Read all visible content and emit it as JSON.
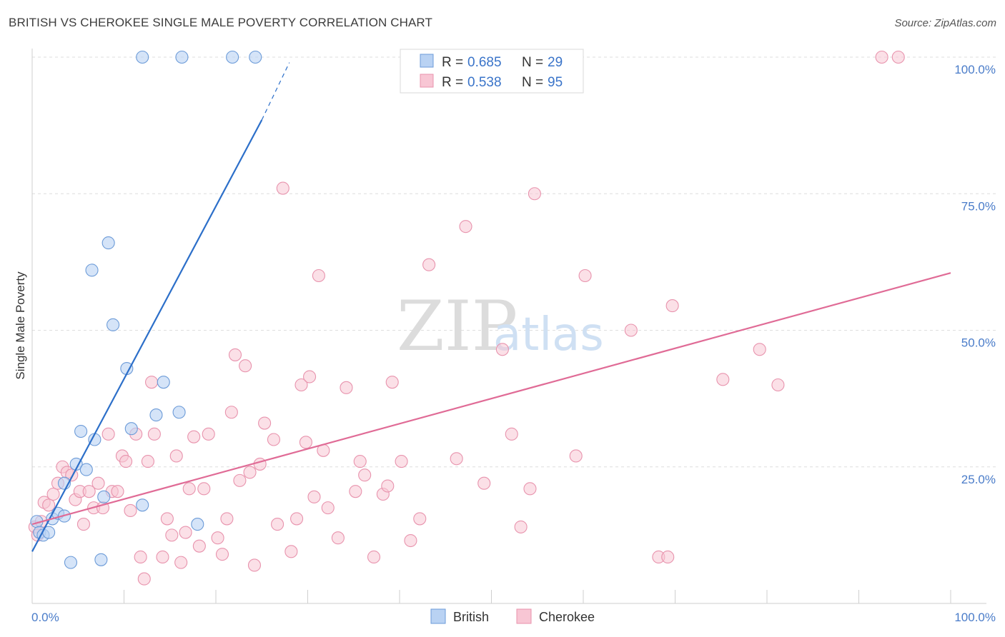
{
  "title": "BRITISH VS CHEROKEE SINGLE MALE POVERTY CORRELATION CHART",
  "source": "Source: ZipAtlas.com",
  "watermark": {
    "zip": "ZIP",
    "atlas": "atlas"
  },
  "colors": {
    "british_fill": "#b9d2f3",
    "british_stroke": "#6c9bd8",
    "british_line": "#2c6fc9",
    "cherokee_fill": "#f8c6d4",
    "cherokee_stroke": "#e893ad",
    "cherokee_line": "#e06b96",
    "grid": "#dedede",
    "axis_text": "#4a7cc9"
  },
  "legend": {
    "british": {
      "r_label": "R = ",
      "r_value": "0.685",
      "n_label": "N = ",
      "n_value": "29"
    },
    "cherokee": {
      "r_label": "R = ",
      "r_value": "0.538",
      "n_label": "N = ",
      "n_value": "95"
    }
  },
  "chart_data": {
    "type": "scatter",
    "title": "BRITISH VS CHEROKEE SINGLE MALE POVERTY CORRELATION CHART",
    "xlabel": "",
    "ylabel": "Single Male Poverty",
    "xlim": [
      0,
      100
    ],
    "ylim": [
      0,
      100
    ],
    "x_tick_labels": [
      "0.0%",
      "100.0%"
    ],
    "y_tick_labels": [
      "25.0%",
      "50.0%",
      "75.0%",
      "100.0%"
    ],
    "y_ticks": [
      25,
      50,
      75,
      100
    ],
    "grid": true,
    "legend_position": "top-center",
    "series": [
      {
        "name": "British",
        "r": 0.685,
        "n": 29,
        "trend": {
          "x0": 0,
          "y0": 9.5,
          "x1": 25,
          "y1": 88.5,
          "dash_x1": 28,
          "dash_y1": 99
        },
        "points": [
          [
            0.5,
            15
          ],
          [
            0.8,
            13
          ],
          [
            1.2,
            12.5
          ],
          [
            1.8,
            13
          ],
          [
            2.2,
            15.5
          ],
          [
            2.8,
            16.5
          ],
          [
            3.5,
            16
          ],
          [
            3.5,
            22
          ],
          [
            4.2,
            7.5
          ],
          [
            4.8,
            25.5
          ],
          [
            5.3,
            31.5
          ],
          [
            5.9,
            24.5
          ],
          [
            6.5,
            61
          ],
          [
            6.8,
            30
          ],
          [
            7.5,
            8
          ],
          [
            7.8,
            19.5
          ],
          [
            8.3,
            66
          ],
          [
            8.8,
            51
          ],
          [
            10.3,
            43
          ],
          [
            10.8,
            32
          ],
          [
            12,
            18
          ],
          [
            12,
            100
          ],
          [
            13.5,
            34.5
          ],
          [
            14.3,
            40.5
          ],
          [
            16,
            35
          ],
          [
            16.3,
            100
          ],
          [
            18,
            14.5
          ],
          [
            21.8,
            100
          ],
          [
            24.3,
            100
          ]
        ]
      },
      {
        "name": "Cherokee",
        "r": 0.538,
        "n": 95,
        "trend": {
          "x0": 0,
          "y0": 14.5,
          "x1": 100,
          "y1": 60.5
        },
        "points": [
          [
            0.3,
            14
          ],
          [
            0.6,
            12.5
          ],
          [
            1,
            15
          ],
          [
            1.3,
            18.5
          ],
          [
            1.8,
            18
          ],
          [
            2.3,
            20
          ],
          [
            2.8,
            22
          ],
          [
            3.3,
            25
          ],
          [
            3.8,
            24
          ],
          [
            4.3,
            23.5
          ],
          [
            4.7,
            19
          ],
          [
            5.2,
            20.5
          ],
          [
            5.6,
            14.5
          ],
          [
            6.2,
            20.5
          ],
          [
            6.7,
            17.5
          ],
          [
            7.2,
            22
          ],
          [
            7.7,
            17.5
          ],
          [
            8.3,
            31
          ],
          [
            8.7,
            20.5
          ],
          [
            9.3,
            20.5
          ],
          [
            9.8,
            27
          ],
          [
            10.2,
            26
          ],
          [
            10.7,
            17
          ],
          [
            11.3,
            31
          ],
          [
            11.8,
            8.5
          ],
          [
            12.2,
            4.5
          ],
          [
            12.6,
            26
          ],
          [
            13,
            40.5
          ],
          [
            13.3,
            31
          ],
          [
            14.2,
            8.5
          ],
          [
            14.7,
            15.5
          ],
          [
            15.2,
            12.5
          ],
          [
            15.7,
            27
          ],
          [
            16.2,
            7.5
          ],
          [
            16.7,
            13
          ],
          [
            17.1,
            21
          ],
          [
            17.6,
            30.5
          ],
          [
            18.2,
            10.5
          ],
          [
            18.7,
            21
          ],
          [
            19.2,
            31
          ],
          [
            20.2,
            12
          ],
          [
            20.7,
            9
          ],
          [
            21.2,
            15.5
          ],
          [
            21.7,
            35
          ],
          [
            22.1,
            45.5
          ],
          [
            22.6,
            22.5
          ],
          [
            23.2,
            43.5
          ],
          [
            23.7,
            24
          ],
          [
            24.2,
            7
          ],
          [
            24.8,
            25.5
          ],
          [
            25.3,
            33
          ],
          [
            26.3,
            30
          ],
          [
            26.7,
            14.5
          ],
          [
            27.3,
            76
          ],
          [
            28.2,
            9.5
          ],
          [
            28.8,
            15.5
          ],
          [
            29.3,
            40
          ],
          [
            29.8,
            29.5
          ],
          [
            30.2,
            41.5
          ],
          [
            30.7,
            19.5
          ],
          [
            31.2,
            60
          ],
          [
            31.7,
            28
          ],
          [
            32.2,
            17.5
          ],
          [
            33.3,
            12
          ],
          [
            34.2,
            39.5
          ],
          [
            35.2,
            20.5
          ],
          [
            35.7,
            26
          ],
          [
            36.2,
            23.5
          ],
          [
            37.2,
            8.5
          ],
          [
            38.2,
            20
          ],
          [
            38.7,
            21.5
          ],
          [
            39.2,
            40.5
          ],
          [
            40.2,
            26
          ],
          [
            41.2,
            11.5
          ],
          [
            42.2,
            15.5
          ],
          [
            43.2,
            62
          ],
          [
            46.2,
            26.5
          ],
          [
            47.2,
            69
          ],
          [
            49.2,
            22
          ],
          [
            51.2,
            46.5
          ],
          [
            52.2,
            31
          ],
          [
            53.2,
            14
          ],
          [
            54.2,
            21
          ],
          [
            54.7,
            75
          ],
          [
            59.2,
            27
          ],
          [
            60.2,
            60
          ],
          [
            65.2,
            50
          ],
          [
            68.2,
            8.5
          ],
          [
            69.2,
            8.5
          ],
          [
            69.7,
            54.5
          ],
          [
            75.2,
            41
          ],
          [
            79.2,
            46.5
          ],
          [
            81.2,
            40
          ],
          [
            92.5,
            100
          ],
          [
            94.3,
            100
          ]
        ]
      }
    ]
  },
  "bottom_legend": {
    "british": "British",
    "cherokee": "Cherokee"
  }
}
